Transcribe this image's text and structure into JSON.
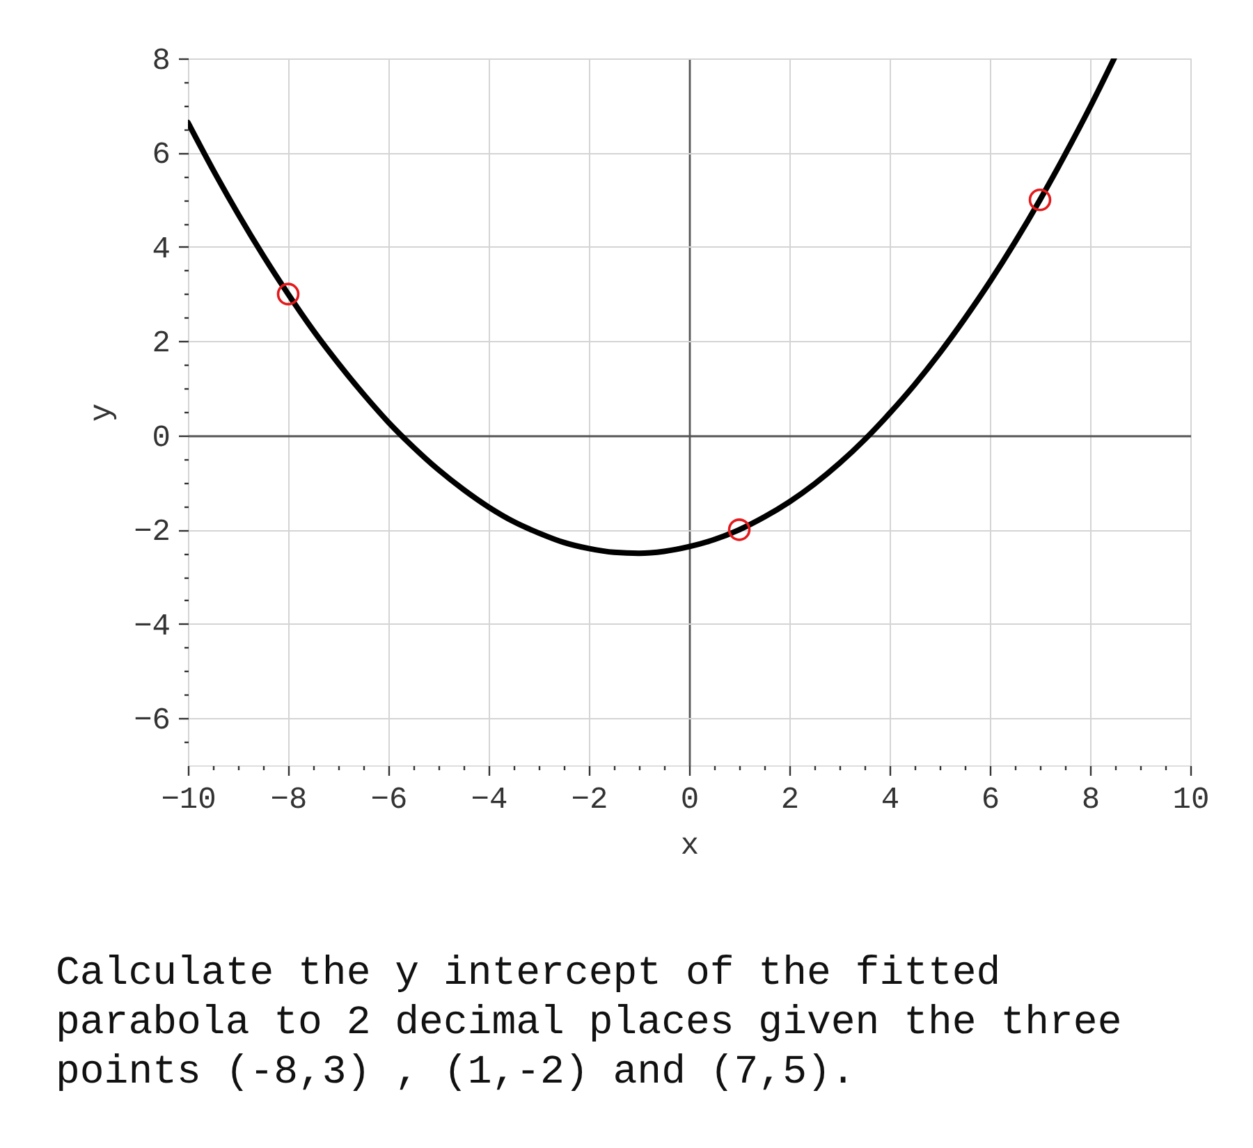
{
  "chart_data": {
    "type": "line",
    "xlabel": "x",
    "ylabel": "y",
    "xlim": [
      -10,
      10
    ],
    "ylim": [
      -7,
      8
    ],
    "xticks": [
      -10,
      {
        "value": -9.5,
        "label": null
      },
      {
        "value": -9,
        "label": null
      },
      {
        "value": -8.5,
        "label": null
      },
      -8,
      {
        "value": -7.5,
        "label": null
      },
      {
        "value": -7,
        "label": null
      },
      {
        "value": -6.5,
        "label": null
      },
      -6,
      {
        "value": -5.5,
        "label": null
      },
      {
        "value": -5,
        "label": null
      },
      {
        "value": -4.5,
        "label": null
      },
      -4,
      {
        "value": -3.5,
        "label": null
      },
      {
        "value": -3,
        "label": null
      },
      {
        "value": -2.5,
        "label": null
      },
      -2,
      {
        "value": -1.5,
        "label": null
      },
      {
        "value": -1,
        "label": null
      },
      {
        "value": -0.5,
        "label": null
      },
      0,
      {
        "value": 0.5,
        "label": null
      },
      {
        "value": 1,
        "label": null
      },
      {
        "value": 1.5,
        "label": null
      },
      2,
      {
        "value": 2.5,
        "label": null
      },
      {
        "value": 3,
        "label": null
      },
      {
        "value": 3.5,
        "label": null
      },
      4,
      {
        "value": 4.5,
        "label": null
      },
      {
        "value": 5,
        "label": null
      },
      {
        "value": 5.5,
        "label": null
      },
      6,
      {
        "value": 6.5,
        "label": null
      },
      {
        "value": 7,
        "label": null
      },
      {
        "value": 7.5,
        "label": null
      },
      8,
      {
        "value": 8.5,
        "label": null
      },
      {
        "value": 9,
        "label": null
      },
      {
        "value": 9.5,
        "label": null
      },
      10
    ],
    "yticks": [
      {
        "value": -6.5,
        "label": null
      },
      -6,
      {
        "value": -5.5,
        "label": null
      },
      {
        "value": -5,
        "label": null
      },
      {
        "value": -4.5,
        "label": null
      },
      -4,
      {
        "value": -3.5,
        "label": null
      },
      {
        "value": -3,
        "label": null
      },
      {
        "value": -2.5,
        "label": null
      },
      -2,
      {
        "value": -1.5,
        "label": null
      },
      {
        "value": -1,
        "label": null
      },
      {
        "value": -0.5,
        "label": null
      },
      0,
      {
        "value": 0.5,
        "label": null
      },
      {
        "value": 1,
        "label": null
      },
      {
        "value": 1.5,
        "label": null
      },
      2,
      {
        "value": 2.5,
        "label": null
      },
      {
        "value": 3,
        "label": null
      },
      {
        "value": 3.5,
        "label": null
      },
      4,
      {
        "value": 4.5,
        "label": null
      },
      {
        "value": 5,
        "label": null
      },
      {
        "value": 5.5,
        "label": null
      },
      6,
      {
        "value": 6.5,
        "label": null
      },
      {
        "value": 7,
        "label": null
      },
      {
        "value": 7.5,
        "label": null
      },
      8
    ],
    "grid": true,
    "series": [
      {
        "color": "#000000",
        "marker": "none",
        "line_style": "solid",
        "x": [
          -10,
          -9.5,
          -9,
          -8.5,
          -8,
          -7.5,
          -7,
          -6.5,
          -6,
          -5.5,
          -5,
          -4.5,
          -4,
          -3.5,
          -3,
          -2.5,
          -2,
          -1.5,
          -1,
          -0.5,
          0,
          0.5,
          1,
          1.5,
          2,
          2.5,
          3,
          3.5,
          4,
          4.5,
          5,
          5.5,
          6,
          6.5,
          7,
          7.5,
          8,
          8.48
        ],
        "values": [
          6.64,
          5.64,
          4.7,
          3.82,
          3.0,
          2.23,
          1.53,
          0.88,
          0.28,
          -0.25,
          -0.73,
          -1.15,
          -1.52,
          -1.83,
          -2.07,
          -2.27,
          -2.4,
          -2.48,
          -2.5,
          -2.46,
          -2.36,
          -2.21,
          -2.0,
          -1.73,
          -1.41,
          -1.03,
          -0.59,
          -0.09,
          0.47,
          1.08,
          1.75,
          2.48,
          3.26,
          4.1,
          5.0,
          5.96,
          6.97,
          8.0
        ]
      },
      {
        "type": "scatter",
        "color": "#e31a1c",
        "marker": "circle",
        "x": [
          -8,
          1,
          7
        ],
        "values": [
          3,
          -2,
          5
        ]
      }
    ],
    "annotations": [
      "Calculate the y intercept of the fitted parabola to 2 decimal places given the three points (-8,3) , (1,-2) and (7,5)."
    ]
  }
}
